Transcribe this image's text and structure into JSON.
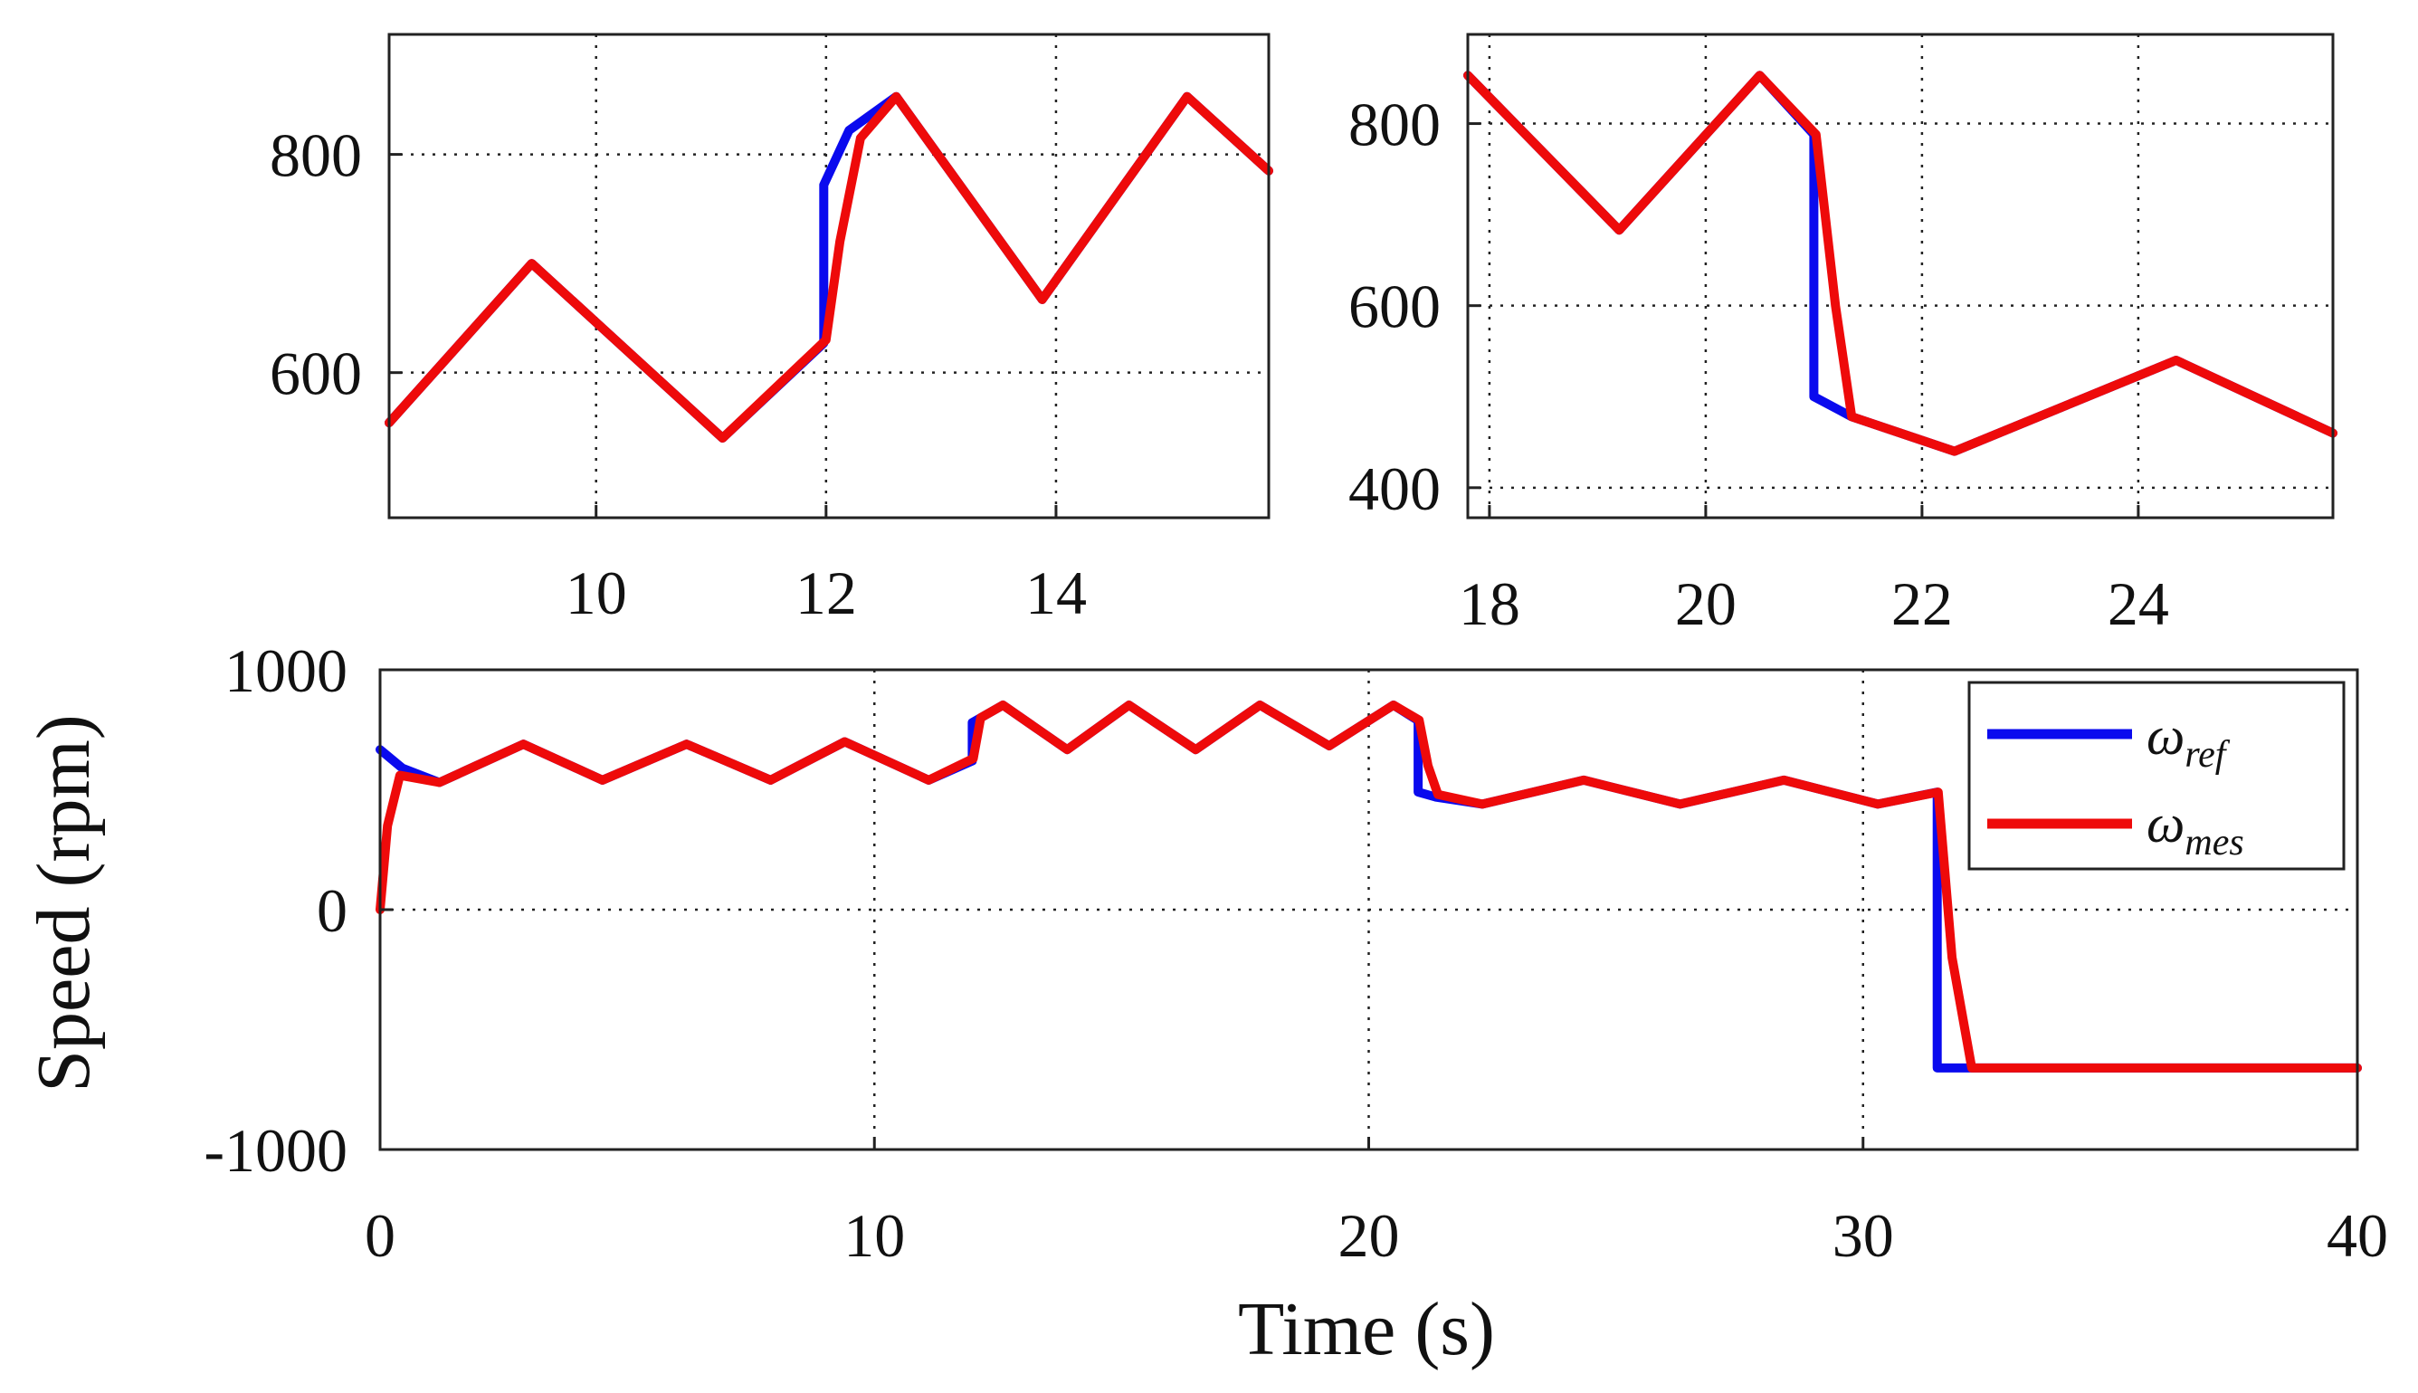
{
  "colors": {
    "ref": "#0a0aee",
    "mes": "#ee0a0a",
    "axis": "#222222",
    "grid": "#222222"
  },
  "chart_data": [
    {
      "id": "inset-left",
      "type": "line",
      "xlim": [
        8.2,
        15.85
      ],
      "ylim": [
        467,
        910
      ],
      "xticks": [
        10,
        12,
        14
      ],
      "yticks": [
        600,
        800
      ],
      "xtick_labels": [
        "10",
        "12",
        "14"
      ],
      "ytick_labels": [
        "600",
        "800"
      ],
      "grid": true,
      "series": [
        {
          "name": "ω_ref",
          "role": "ref",
          "x": [
            8.2,
            9.44,
            11.1,
            11.98,
            11.98,
            12.2,
            12.61,
            13.88,
            15.14,
            15.85
          ],
          "y": [
            554,
            700,
            540,
            627,
            772,
            822,
            853,
            667,
            853,
            785
          ]
        },
        {
          "name": "ω_mes",
          "role": "mes",
          "x": [
            8.2,
            9.44,
            11.1,
            12.0,
            12.12,
            12.3,
            12.61,
            13.88,
            15.14,
            15.85
          ],
          "y": [
            554,
            700,
            540,
            630,
            720,
            815,
            853,
            667,
            853,
            785
          ]
        }
      ]
    },
    {
      "id": "inset-right",
      "type": "line",
      "xlim": [
        17.8,
        25.8
      ],
      "ylim": [
        367,
        898
      ],
      "xticks": [
        18,
        20,
        22,
        24
      ],
      "yticks": [
        400,
        600,
        800
      ],
      "xtick_labels": [
        "18",
        "20",
        "22",
        "24"
      ],
      "ytick_labels": [
        "400",
        "600",
        "800"
      ],
      "grid": true,
      "series": [
        {
          "name": "ω_ref",
          "role": "ref",
          "x": [
            17.8,
            19.2,
            20.5,
            21.0,
            21.0,
            21.35,
            22.3,
            24.35,
            25.8
          ],
          "y": [
            853,
            683,
            853,
            788,
            500,
            478,
            440,
            540,
            460
          ]
        },
        {
          "name": "ω_mes",
          "role": "mes",
          "x": [
            17.8,
            19.2,
            20.5,
            21.02,
            21.2,
            21.35,
            22.3,
            24.35,
            25.8
          ],
          "y": [
            853,
            683,
            853,
            788,
            600,
            478,
            440,
            540,
            460
          ]
        }
      ]
    },
    {
      "id": "main",
      "type": "line",
      "xlim": [
        0,
        40
      ],
      "ylim": [
        -1000,
        1000
      ],
      "xticks": [
        0,
        10,
        20,
        30,
        40
      ],
      "yticks": [
        -1000,
        0,
        1000
      ],
      "xtick_labels": [
        "0",
        "10",
        "20",
        "30",
        "40"
      ],
      "ytick_labels": [
        "-1000",
        "0",
        "1000"
      ],
      "xlabel": "Time (s)",
      "ylabel": "Speed (rpm)",
      "grid": true,
      "legend": "top-right",
      "series": [
        {
          "name": "ω_ref",
          "role": "ref",
          "x": [
            0,
            0.45,
            1.2,
            2.9,
            4.5,
            6.2,
            7.9,
            9.4,
            11.1,
            11.98,
            11.98,
            12.6,
            13.9,
            15.15,
            16.5,
            17.8,
            19.2,
            20.5,
            21.0,
            21.0,
            21.35,
            22.3,
            24.35,
            26.3,
            28.4,
            30.3,
            31.5,
            31.5,
            40
          ],
          "y": [
            667,
            590,
            530,
            690,
            540,
            690,
            540,
            700,
            540,
            620,
            780,
            853,
            667,
            853,
            667,
            853,
            683,
            853,
            788,
            490,
            470,
            440,
            540,
            440,
            540,
            440,
            490,
            -660,
            -660
          ]
        },
        {
          "name": "ω_mes",
          "role": "mes",
          "x": [
            0,
            0.15,
            0.4,
            1.2,
            2.9,
            4.5,
            6.2,
            7.9,
            9.4,
            11.1,
            12.0,
            12.15,
            12.6,
            13.9,
            15.15,
            16.5,
            17.8,
            19.2,
            20.5,
            21.02,
            21.2,
            21.4,
            22.3,
            24.35,
            26.3,
            28.4,
            30.3,
            31.52,
            31.8,
            32.2,
            40
          ],
          "y": [
            0,
            350,
            560,
            530,
            690,
            540,
            690,
            540,
            700,
            540,
            630,
            800,
            853,
            667,
            853,
            667,
            853,
            683,
            853,
            790,
            600,
            480,
            440,
            540,
            440,
            540,
            440,
            490,
            -200,
            -660,
            -660
          ]
        }
      ]
    }
  ],
  "legend": {
    "entries": [
      {
        "role": "ref",
        "symbol": "ω",
        "subscript": "ref"
      },
      {
        "role": "mes",
        "symbol": "ω",
        "subscript": "mes"
      }
    ]
  }
}
